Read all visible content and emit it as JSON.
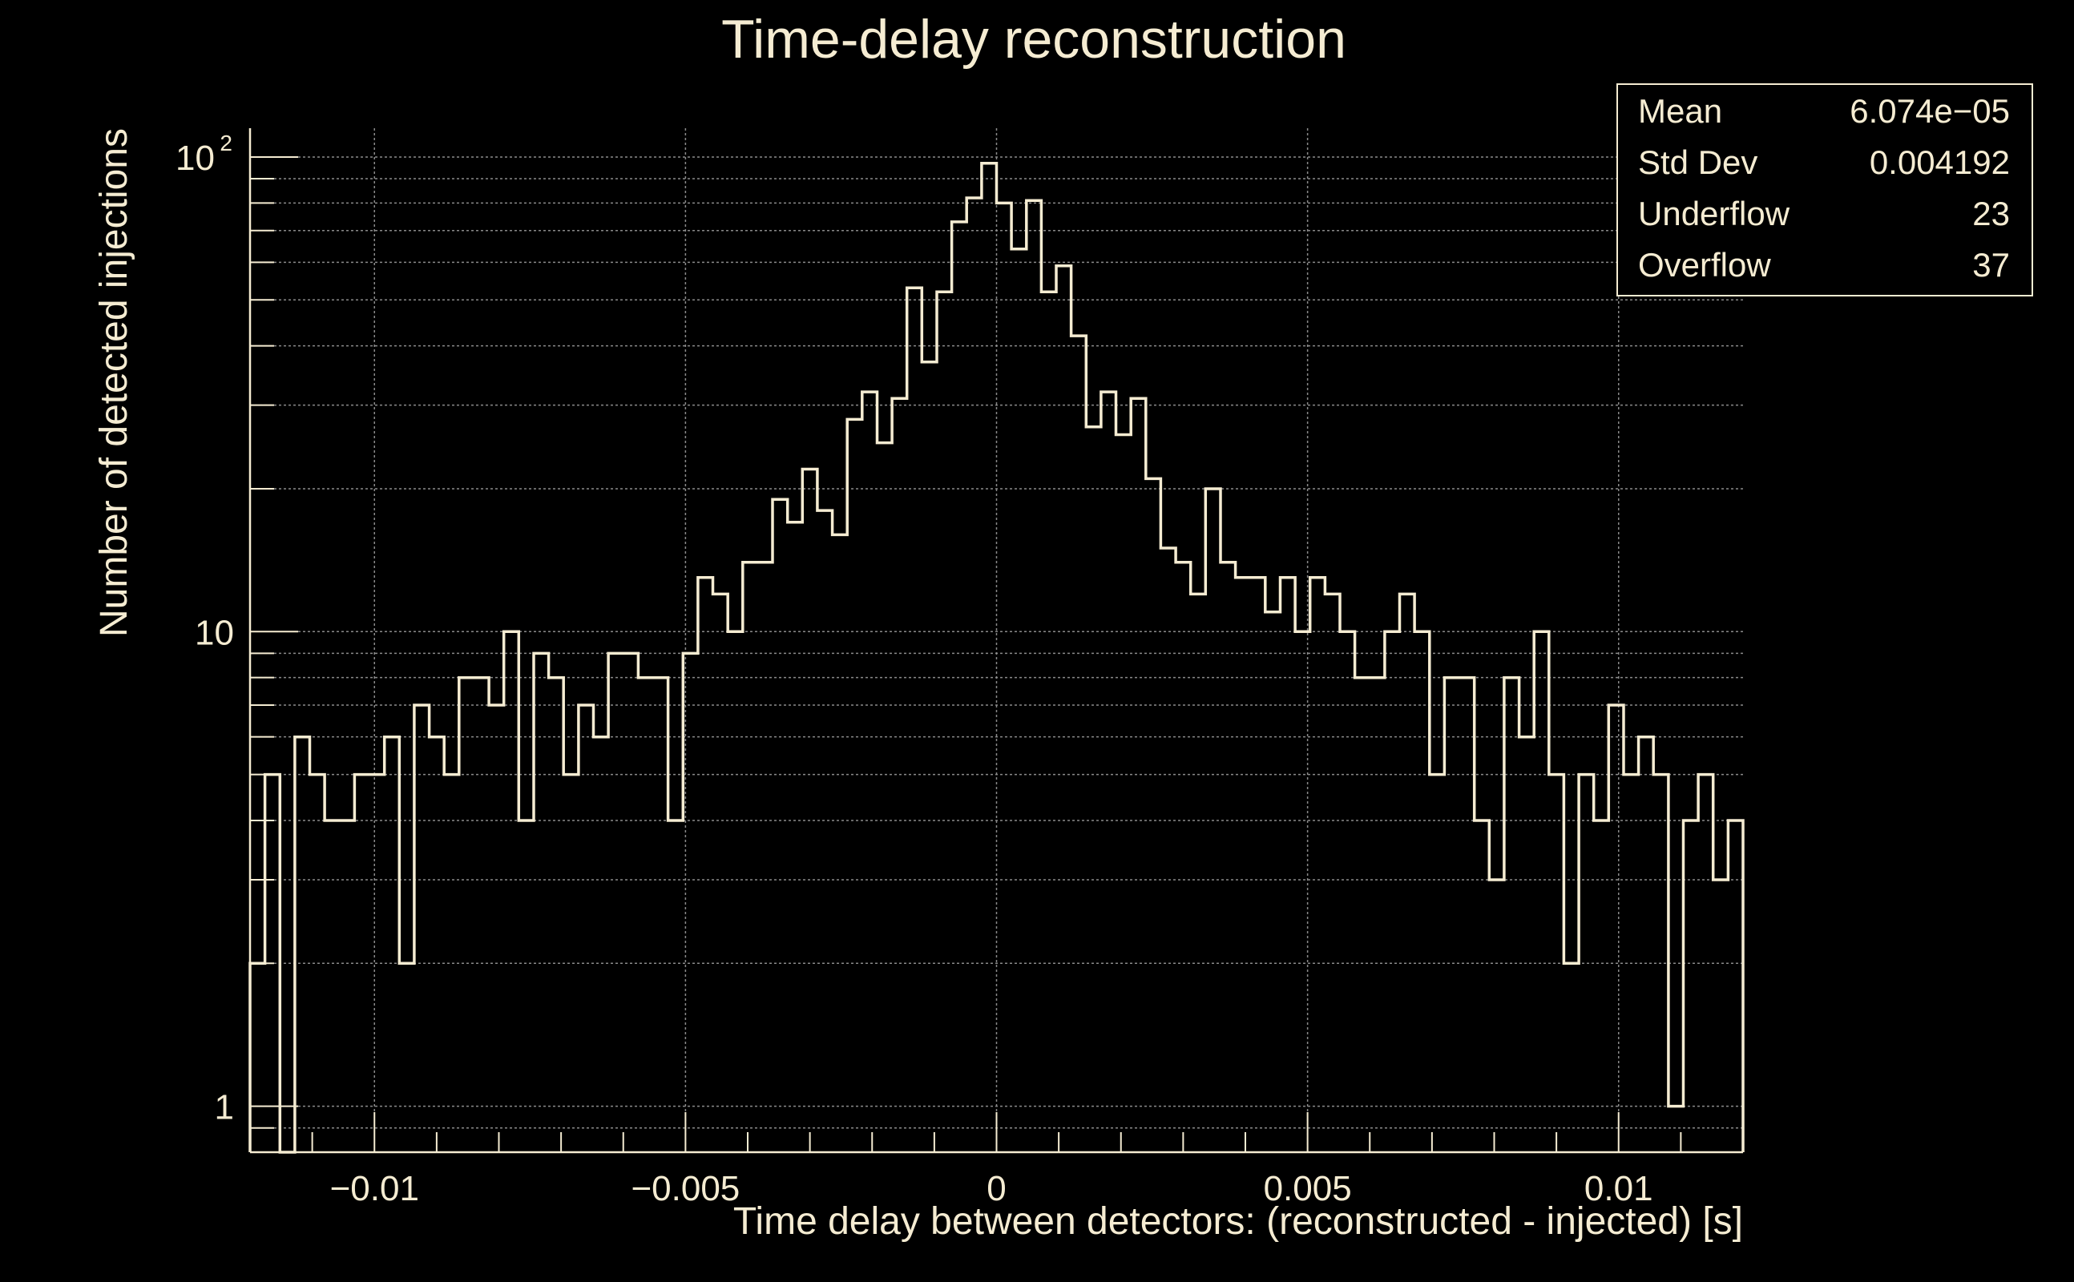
{
  "chart_data": {
    "type": "histogram",
    "title": "Time-delay reconstruction",
    "xlabel": "Time delay between detectors: (reconstructed - injected) [s]",
    "ylabel": "Number of detected injections",
    "xlim": [
      -0.012,
      0.012
    ],
    "ylim": [
      0.8,
      115
    ],
    "yscale": "log",
    "grid": true,
    "x_ticks": [
      {
        "value": -0.01,
        "label": "−0.01"
      },
      {
        "value": -0.005,
        "label": "−0.005"
      },
      {
        "value": 0,
        "label": "0"
      },
      {
        "value": 0.005,
        "label": "0.005"
      },
      {
        "value": 0.01,
        "label": "0.01"
      }
    ],
    "y_ticks": [
      {
        "value": 1,
        "label": "1"
      },
      {
        "value": 10,
        "label": "10"
      },
      {
        "value": 100,
        "label": "10",
        "sup": "2"
      }
    ],
    "bin_width": 0.00024,
    "bin_start": -0.012,
    "values": [
      2,
      5,
      0,
      6,
      5,
      4,
      4,
      5,
      5,
      6,
      2,
      7,
      6,
      5,
      8,
      8,
      7,
      10,
      4,
      9,
      8,
      5,
      7,
      6,
      9,
      9,
      8,
      8,
      4,
      9,
      13,
      12,
      10,
      14,
      14,
      19,
      17,
      22,
      18,
      16,
      28,
      32,
      25,
      31,
      53,
      37,
      52,
      73,
      82,
      97,
      80,
      64,
      81,
      52,
      59,
      42,
      27,
      32,
      26,
      31,
      21,
      15,
      14,
      12,
      20,
      14,
      13,
      13,
      11,
      13,
      10,
      13,
      12,
      10,
      8,
      8,
      10,
      12,
      10,
      5,
      8,
      8,
      4,
      3,
      8,
      6,
      10,
      5,
      2,
      5,
      4,
      7,
      5,
      6,
      5,
      1,
      4,
      5,
      3,
      4
    ],
    "stats": {
      "position": "top-right",
      "rows": [
        {
          "label": "Mean",
          "value": "6.074e−05"
        },
        {
          "label": "Std Dev",
          "value": "0.004192"
        },
        {
          "label": "Underflow",
          "value": "23"
        },
        {
          "label": "Overflow",
          "value": "37"
        }
      ]
    },
    "colors": {
      "background": "#000000",
      "line": "#f5ecd2",
      "grid": "#8a8a8a",
      "axis": "#f5ecd2"
    }
  }
}
